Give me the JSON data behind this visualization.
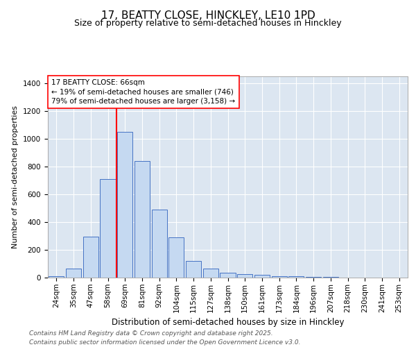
{
  "title1": "17, BEATTY CLOSE, HINCKLEY, LE10 1PD",
  "title2": "Size of property relative to semi-detached houses in Hinckley",
  "xlabel": "Distribution of semi-detached houses by size in Hinckley",
  "ylabel": "Number of semi-detached properties",
  "bar_labels": [
    "24sqm",
    "35sqm",
    "47sqm",
    "58sqm",
    "69sqm",
    "81sqm",
    "92sqm",
    "104sqm",
    "115sqm",
    "127sqm",
    "138sqm",
    "150sqm",
    "161sqm",
    "173sqm",
    "184sqm",
    "196sqm",
    "207sqm",
    "218sqm",
    "230sqm",
    "241sqm",
    "253sqm"
  ],
  "bar_values": [
    10,
    65,
    295,
    710,
    1050,
    840,
    490,
    290,
    120,
    65,
    35,
    25,
    20,
    12,
    8,
    5,
    3,
    2,
    1,
    0,
    0
  ],
  "bar_color": "#c5d9f1",
  "bar_edgecolor": "#4472c4",
  "fig_bg_color": "#ffffff",
  "plot_bg_color": "#dce6f1",
  "red_line_x": 3.5,
  "red_line_label": "17 BEATTY CLOSE: 66sqm",
  "annotation_smaller": "← 19% of semi-detached houses are smaller (746)",
  "annotation_larger": "79% of semi-detached houses are larger (3,158) →",
  "ylim": [
    0,
    1450
  ],
  "yticks": [
    0,
    200,
    400,
    600,
    800,
    1000,
    1200,
    1400
  ],
  "footnote1": "Contains HM Land Registry data © Crown copyright and database right 2025.",
  "footnote2": "Contains public sector information licensed under the Open Government Licence v3.0.",
  "title1_fontsize": 11,
  "title2_fontsize": 9,
  "xlabel_fontsize": 8.5,
  "ylabel_fontsize": 8,
  "tick_fontsize": 7.5,
  "annotation_fontsize": 7.5,
  "footnote_fontsize": 6.5
}
